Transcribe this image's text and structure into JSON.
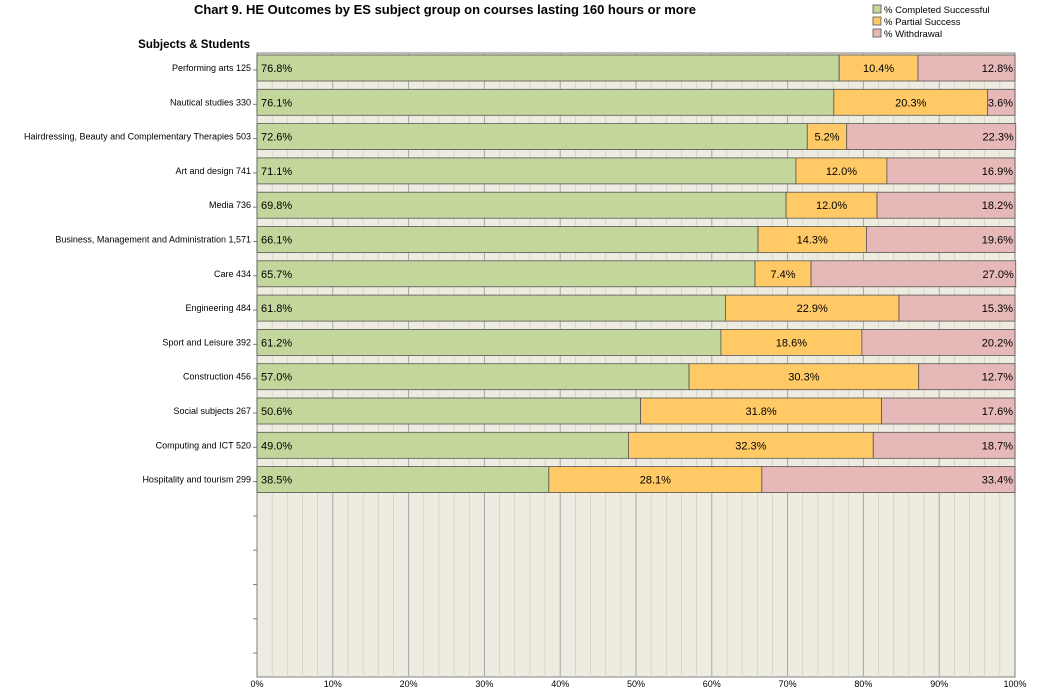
{
  "chart_data": {
    "type": "bar",
    "orientation": "horizontal",
    "stacked": true,
    "title": "Chart 9. HE Outcomes by ES subject group on courses lasting 160 hours or more",
    "ylabel": "Subjects & Students",
    "xlim": [
      0,
      100
    ],
    "x_ticks": [
      "0%",
      "10%",
      "20%",
      "30%",
      "40%",
      "50%",
      "60%",
      "70%",
      "80%",
      "90%",
      "100%"
    ],
    "legend_position": "top-right",
    "grid": true,
    "categories": [
      "Performing arts  125",
      "Nautical studies  330",
      "Hairdressing, Beauty and Complementary Therapies  503",
      "Art and design  741",
      "Media  736",
      "Business, Management and Administration  1,571",
      "Care  434",
      "Engineering  484",
      "Sport and Leisure  392",
      "Construction  456",
      "Social subjects  267",
      "Computing and ICT  520",
      "Hospitality and tourism  299"
    ],
    "series": [
      {
        "name": "% Completed Successful",
        "color": "#c3d69b",
        "values": [
          76.8,
          76.1,
          72.6,
          71.1,
          69.8,
          66.1,
          65.7,
          61.8,
          61.2,
          57.0,
          50.6,
          49.0,
          38.5
        ],
        "labels": [
          "76.8%",
          "76.1%",
          "72.6%",
          "71.1%",
          "69.8%",
          "66.1%",
          "65.7%",
          "61.8%",
          "61.2%",
          "57.0%",
          "50.6%",
          "49.0%",
          "38.5%"
        ]
      },
      {
        "name": "% Partial Success",
        "color": "#ffc966",
        "values": [
          10.4,
          20.3,
          5.2,
          12.0,
          12.0,
          14.3,
          7.4,
          22.9,
          18.6,
          30.3,
          31.8,
          32.3,
          28.1
        ],
        "labels": [
          "10.4%",
          "20.3%",
          "5.2%",
          "12.0%",
          "12.0%",
          "14.3%",
          "7.4%",
          "22.9%",
          "18.6%",
          "30.3%",
          "31.8%",
          "32.3%",
          "28.1%"
        ]
      },
      {
        "name": "% Withdrawal",
        "color": "#e6b9b8",
        "values": [
          12.8,
          3.6,
          22.3,
          16.9,
          18.2,
          19.6,
          27.0,
          15.3,
          20.2,
          12.7,
          17.6,
          18.7,
          33.4
        ],
        "labels": [
          "12.8%",
          "3.6%",
          "22.3%",
          "16.9%",
          "18.2%",
          "19.6%",
          "27.0%",
          "15.3%",
          "20.2%",
          "12.7%",
          "17.6%",
          "18.7%",
          "33.4%"
        ]
      }
    ],
    "colors": {
      "plot_background": "#eeece1",
      "grid": "#a6a6a6",
      "bar_border": "#555555"
    }
  }
}
